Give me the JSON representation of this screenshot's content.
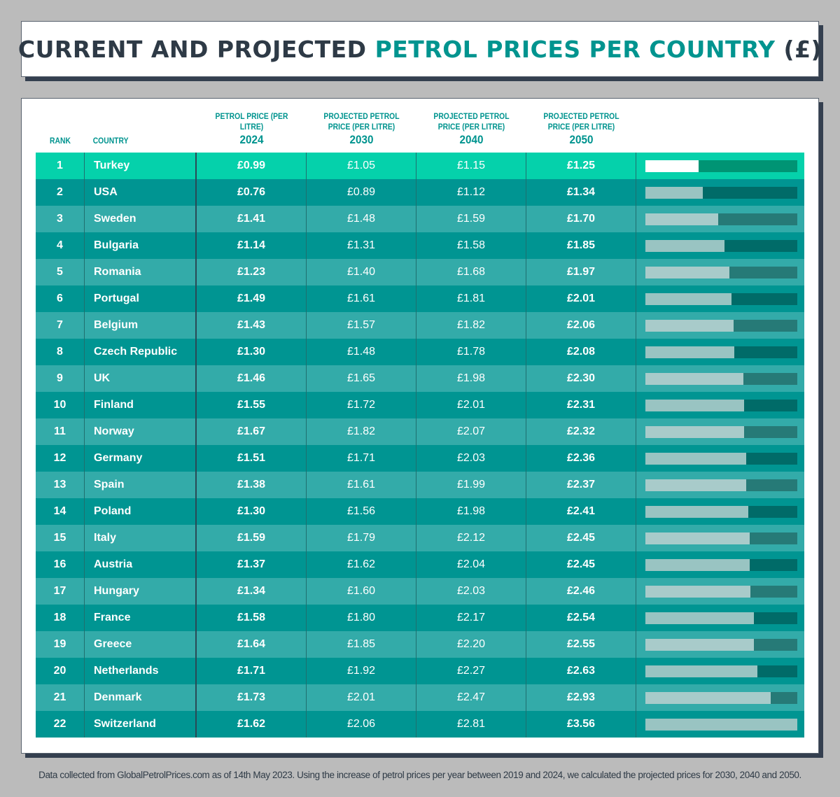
{
  "title": {
    "part1": "CURRENT AND PROJECTED ",
    "part2": "PETROL PRICES PER COUNTRY",
    "part3": " (£)"
  },
  "colors": {
    "title_dark": "#2e3a46",
    "accent": "#00948f",
    "top_row": "#05d1ab",
    "row_dark": "#009592",
    "row_light": "#33aba9"
  },
  "footnote": "Data collected from GlobalPetrolPrices.com as of 14th May 2023. Using the increase of petrol prices per year between 2019 and 2024, we calculated the projected prices for 2030, 2040 and 2050.",
  "chart_data": {
    "type": "table",
    "headers": {
      "rank": "RANK",
      "country": "COUNTRY",
      "p2024": {
        "label": "PETROL PRICE (PER LITRE)",
        "year": "2024"
      },
      "p2030": {
        "label": "PROJECTED PETROL PRICE (PER LITRE)",
        "year": "2030"
      },
      "p2040": {
        "label": "PROJECTED PETROL PRICE (PER LITRE)",
        "year": "2040"
      },
      "p2050": {
        "label": "PROJECTED PETROL PRICE (PER LITRE)",
        "year": "2050"
      }
    },
    "bar_series": "2050",
    "bar_max": 3.56,
    "rows": [
      {
        "rank": "1",
        "country": "Turkey",
        "p2024": "£0.99",
        "p2030": "£1.05",
        "p2040": "£1.15",
        "p2050": "£1.25",
        "v2050": 1.25
      },
      {
        "rank": "2",
        "country": "USA",
        "p2024": "£0.76",
        "p2030": "£0.89",
        "p2040": "£1.12",
        "p2050": "£1.34",
        "v2050": 1.34
      },
      {
        "rank": "3",
        "country": "Sweden",
        "p2024": "£1.41",
        "p2030": "£1.48",
        "p2040": "£1.59",
        "p2050": "£1.70",
        "v2050": 1.7
      },
      {
        "rank": "4",
        "country": "Bulgaria",
        "p2024": "£1.14",
        "p2030": "£1.31",
        "p2040": "£1.58",
        "p2050": "£1.85",
        "v2050": 1.85
      },
      {
        "rank": "5",
        "country": "Romania",
        "p2024": "£1.23",
        "p2030": "£1.40",
        "p2040": "£1.68",
        "p2050": "£1.97",
        "v2050": 1.97
      },
      {
        "rank": "6",
        "country": "Portugal",
        "p2024": "£1.49",
        "p2030": "£1.61",
        "p2040": "£1.81",
        "p2050": "£2.01",
        "v2050": 2.01
      },
      {
        "rank": "7",
        "country": "Belgium",
        "p2024": "£1.43",
        "p2030": "£1.57",
        "p2040": "£1.82",
        "p2050": "£2.06",
        "v2050": 2.06
      },
      {
        "rank": "8",
        "country": "Czech Republic",
        "p2024": "£1.30",
        "p2030": "£1.48",
        "p2040": "£1.78",
        "p2050": "£2.08",
        "v2050": 2.08
      },
      {
        "rank": "9",
        "country": "UK",
        "p2024": "£1.46",
        "p2030": "£1.65",
        "p2040": "£1.98",
        "p2050": "£2.30",
        "v2050": 2.3
      },
      {
        "rank": "10",
        "country": "Finland",
        "p2024": "£1.55",
        "p2030": "£1.72",
        "p2040": "£2.01",
        "p2050": "£2.31",
        "v2050": 2.31
      },
      {
        "rank": "11",
        "country": "Norway",
        "p2024": "£1.67",
        "p2030": "£1.82",
        "p2040": "£2.07",
        "p2050": "£2.32",
        "v2050": 2.32
      },
      {
        "rank": "12",
        "country": "Germany",
        "p2024": "£1.51",
        "p2030": "£1.71",
        "p2040": "£2.03",
        "p2050": "£2.36",
        "v2050": 2.36
      },
      {
        "rank": "13",
        "country": "Spain",
        "p2024": "£1.38",
        "p2030": "£1.61",
        "p2040": "£1.99",
        "p2050": "£2.37",
        "v2050": 2.37
      },
      {
        "rank": "14",
        "country": "Poland",
        "p2024": "£1.30",
        "p2030": "£1.56",
        "p2040": "£1.98",
        "p2050": "£2.41",
        "v2050": 2.41
      },
      {
        "rank": "15",
        "country": "Italy",
        "p2024": "£1.59",
        "p2030": "£1.79",
        "p2040": "£2.12",
        "p2050": "£2.45",
        "v2050": 2.45
      },
      {
        "rank": "16",
        "country": "Austria",
        "p2024": "£1.37",
        "p2030": "£1.62",
        "p2040": "£2.04",
        "p2050": "£2.45",
        "v2050": 2.45
      },
      {
        "rank": "17",
        "country": "Hungary",
        "p2024": "£1.34",
        "p2030": "£1.60",
        "p2040": "£2.03",
        "p2050": "£2.46",
        "v2050": 2.46
      },
      {
        "rank": "18",
        "country": "France",
        "p2024": "£1.58",
        "p2030": "£1.80",
        "p2040": "£2.17",
        "p2050": "£2.54",
        "v2050": 2.54
      },
      {
        "rank": "19",
        "country": "Greece",
        "p2024": "£1.64",
        "p2030": "£1.85",
        "p2040": "£2.20",
        "p2050": "£2.55",
        "v2050": 2.55
      },
      {
        "rank": "20",
        "country": "Netherlands",
        "p2024": "£1.71",
        "p2030": "£1.92",
        "p2040": "£2.27",
        "p2050": "£2.63",
        "v2050": 2.63
      },
      {
        "rank": "21",
        "country": "Denmark",
        "p2024": "£1.73",
        "p2030": "£2.01",
        "p2040": "£2.47",
        "p2050": "£2.93",
        "v2050": 2.93
      },
      {
        "rank": "22",
        "country": "Switzerland",
        "p2024": "£1.62",
        "p2030": "£2.06",
        "p2040": "£2.81",
        "p2050": "£3.56",
        "v2050": 3.56
      }
    ]
  }
}
